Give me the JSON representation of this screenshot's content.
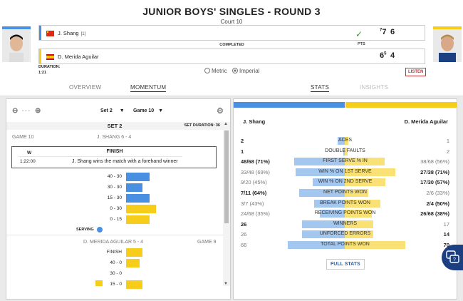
{
  "header": {
    "title": "JUNIOR BOYS' SINGLES - ROUND 3",
    "court": "Court 10"
  },
  "colors": {
    "blue": "#4a90e2",
    "yellow": "#f5cd1a",
    "navy": "#1c3f82"
  },
  "players": [
    {
      "name": "J. Shang",
      "seed": "[1]",
      "flag": "china-flag-icon",
      "set1": "7",
      "set1_tb": "7",
      "set2": "6",
      "winner_icon": "checkmark-icon"
    },
    {
      "name": "D. Merida Aguilar",
      "seed": "",
      "flag": "spain-flag-icon",
      "set1": "6",
      "set1_tb": "5",
      "set2": "4"
    }
  ],
  "match": {
    "status": "COMPLETED",
    "pts_label": "PTS",
    "duration_label": "DURATION:",
    "duration": "1:21"
  },
  "units": {
    "metric": "Metric",
    "imperial": "Imperial"
  },
  "listen_label": "LISTEN",
  "nav": {
    "overview": "OVERVIEW",
    "momentum": "MOMENTUM",
    "stats": "STATS",
    "insights": "INSIGHTS"
  },
  "momentum": {
    "zoom_value": "- - -",
    "set_select": "Set 2",
    "game_select": "Game 10",
    "set_header": "SET 2",
    "set_duration": "SET DURATION: 36",
    "game10": {
      "label": "GAME 10",
      "server": "J. SHANG 6 - 4"
    },
    "finish": {
      "side": "W",
      "title": "FINISH",
      "time": "1:22:00",
      "text": "J. Shang wins the match with a forehand winner"
    },
    "points": [
      {
        "score": "40 - 30",
        "player": "shang",
        "level": 0.47
      },
      {
        "score": "30 - 30",
        "player": "shang",
        "level": 0.33
      },
      {
        "score": "15 - 30",
        "player": "shang",
        "level": 0.47
      },
      {
        "score": "0 - 30",
        "player": "merida",
        "level": 0.6
      },
      {
        "score": "0 - 15",
        "player": "merida",
        "level": 0.47
      }
    ],
    "serving": "SERVING",
    "game9": {
      "label": "GAME 9",
      "server": "D. MERIDA AGUILAR 5 - 4"
    },
    "points9": [
      {
        "score": "FINISH",
        "player": "merida",
        "level": 0.33
      },
      {
        "score": "40 - 0",
        "player": "merida",
        "level": 0.27
      },
      {
        "score": "30 - 0",
        "player": "merida",
        "level": 0
      },
      {
        "score": "15 - 0",
        "player": "merida",
        "level": 0.33
      }
    ]
  },
  "stats": {
    "player1": "J. Shang",
    "player2": "D. Merida Aguilar",
    "rows": [
      {
        "label": "ACES",
        "left": "2",
        "right": "1",
        "lb": true,
        "rb": false,
        "lw": 0.1,
        "rw": 0.05
      },
      {
        "label": "DOUBLE FAULTS",
        "left": "1",
        "right": "2",
        "lb": true,
        "rb": false,
        "lw": 0.02,
        "rw": 0.04
      },
      {
        "label": "FIRST SERVE % IN",
        "left": "48/68 (71%)",
        "right": "38/68 (56%)",
        "lb": true,
        "rb": false,
        "lw": 0.71,
        "rw": 0.56
      },
      {
        "label": "WIN % ON 1ST SERVE",
        "left": "33/48 (69%)",
        "right": "27/38 (71%)",
        "lb": false,
        "rb": true,
        "lw": 0.69,
        "rw": 0.71
      },
      {
        "label": "WIN % ON 2ND SERVE",
        "left": "9/20 (45%)",
        "right": "17/30 (57%)",
        "lb": false,
        "rb": true,
        "lw": 0.45,
        "rw": 0.57
      },
      {
        "label": "NET POINTS WON",
        "left": "7/11 (64%)",
        "right": "2/6 (33%)",
        "lb": true,
        "rb": false,
        "lw": 0.64,
        "rw": 0.33
      },
      {
        "label": "BREAK POINTS WON",
        "left": "3/7 (43%)",
        "right": "2/4 (50%)",
        "lb": false,
        "rb": true,
        "lw": 0.43,
        "rw": 0.5
      },
      {
        "label": "RECEIVING POINTS WON",
        "left": "24/68 (35%)",
        "right": "26/68 (38%)",
        "lb": false,
        "rb": true,
        "lw": 0.35,
        "rw": 0.38
      },
      {
        "label": "WINNERS",
        "left": "26",
        "right": "17",
        "lb": true,
        "rb": false,
        "lw": 0.6,
        "rw": 0.4
      },
      {
        "label": "UNFORCED ERRORS",
        "left": "26",
        "right": "14",
        "lb": false,
        "rb": true,
        "lw": 0.6,
        "rw": 0.4
      },
      {
        "label": "TOTAL POINTS WON",
        "left": "66",
        "right": "70",
        "lb": false,
        "rb": true,
        "lw": 0.8,
        "rw": 0.85
      }
    ],
    "full_stats": "FULL STATS"
  }
}
